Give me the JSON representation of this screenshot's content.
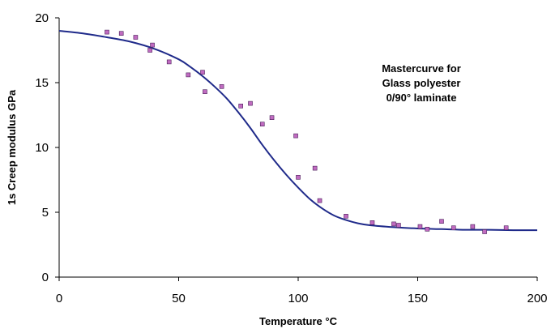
{
  "chart_data": {
    "type": "scatter",
    "xlabel": "Temperature  °C",
    "ylabel": "1s Creep modulus  GPa",
    "xlim": [
      0,
      200
    ],
    "ylim": [
      0,
      20
    ],
    "x_ticks": [
      "0",
      "50",
      "100",
      "150",
      "200"
    ],
    "y_ticks": [
      "0",
      "5",
      "10",
      "15",
      "20"
    ],
    "annotation": [
      "Mastercurve for",
      "Glass polyester",
      "0/90° laminate"
    ],
    "grid": false,
    "legend": "none",
    "series": [
      {
        "kind": "points",
        "color": "#c06bc0",
        "x": [
          20,
          26,
          32,
          38,
          39,
          46,
          54,
          60,
          61,
          68,
          76,
          80,
          85,
          89,
          99,
          100,
          107,
          109,
          120,
          131,
          140,
          142,
          151,
          154,
          160,
          165,
          173,
          178,
          187
        ],
        "y": [
          18.9,
          18.8,
          18.5,
          17.5,
          17.9,
          16.6,
          15.6,
          15.8,
          14.3,
          14.7,
          13.2,
          13.4,
          11.8,
          12.3,
          10.9,
          7.7,
          8.4,
          5.9,
          4.7,
          4.2,
          4.1,
          4.0,
          3.9,
          3.7,
          4.3,
          3.8,
          3.9,
          3.5,
          3.8
        ]
      },
      {
        "kind": "curve",
        "color": "#1f2a8a",
        "x": [
          0,
          10,
          20,
          30,
          40,
          50,
          55,
          60,
          65,
          70,
          75,
          80,
          85,
          90,
          95,
          100,
          105,
          110,
          115,
          120,
          125,
          130,
          140,
          150,
          160,
          170,
          180,
          190,
          200
        ],
        "y": [
          19.0,
          18.8,
          18.5,
          18.15,
          17.6,
          16.8,
          16.2,
          15.5,
          14.7,
          13.8,
          12.7,
          11.5,
          10.2,
          9.0,
          7.9,
          6.9,
          6.0,
          5.3,
          4.75,
          4.4,
          4.15,
          4.0,
          3.85,
          3.75,
          3.7,
          3.65,
          3.65,
          3.62,
          3.62
        ]
      }
    ]
  }
}
